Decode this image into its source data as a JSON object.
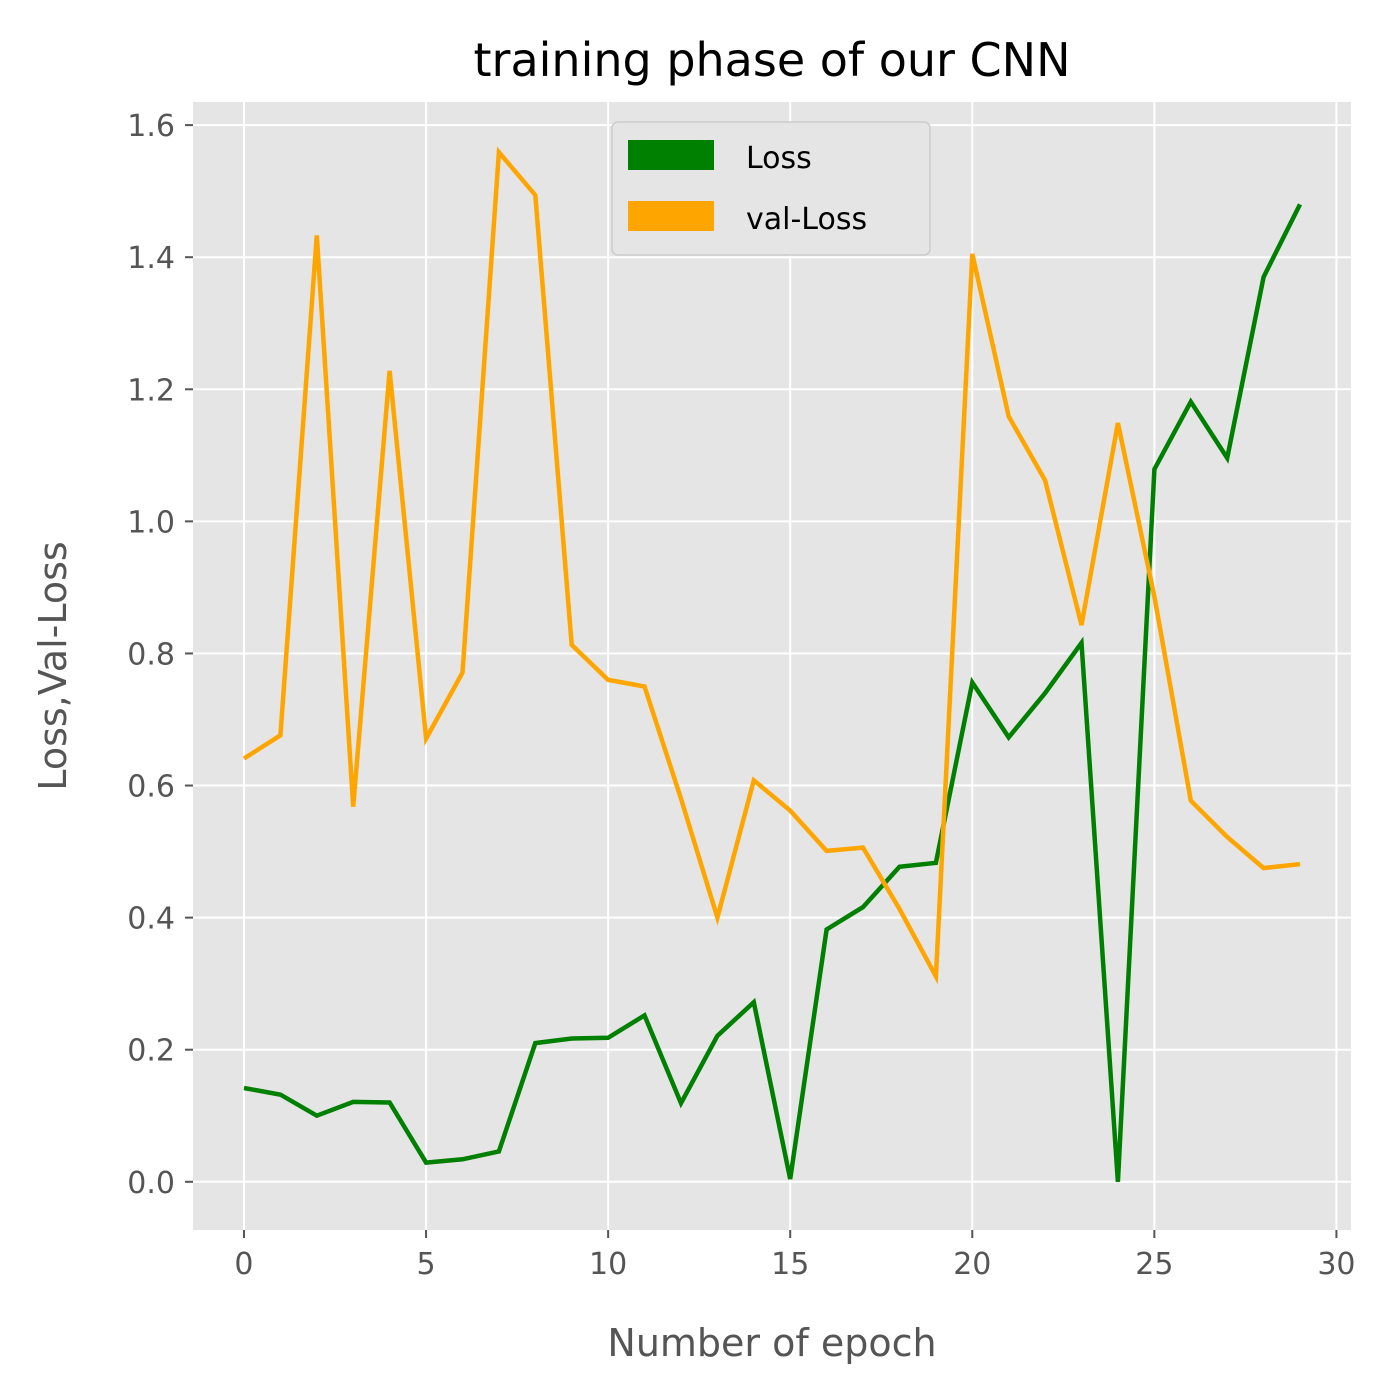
{
  "chart_data": {
    "type": "line",
    "title": "training phase of our CNN",
    "xlabel": "Number of epoch",
    "ylabel": "Loss,Val-Loss",
    "xlim": [
      -1.4,
      30.4
    ],
    "ylim": [
      -0.073,
      1.635
    ],
    "xticks": [
      0,
      5,
      10,
      15,
      20,
      25,
      30
    ],
    "yticks": [
      0.0,
      0.2,
      0.4,
      0.6,
      0.8,
      1.0,
      1.2,
      1.4,
      1.6
    ],
    "xtick_labels": [
      "0",
      "5",
      "10",
      "15",
      "20",
      "25",
      "30"
    ],
    "ytick_labels": [
      "0.0",
      "0.2",
      "0.4",
      "0.6",
      "0.8",
      "1.0",
      "1.2",
      "1.4",
      "1.6"
    ],
    "grid": true,
    "legend_position": "top-center",
    "x": [
      0,
      1,
      2,
      3,
      4,
      5,
      6,
      7,
      8,
      9,
      10,
      11,
      12,
      13,
      14,
      15,
      16,
      17,
      18,
      19,
      20,
      21,
      22,
      23,
      24,
      25,
      26,
      27,
      28,
      29
    ],
    "series": [
      {
        "name": "Loss",
        "color": "#008000",
        "values": [
          0.142,
          0.132,
          0.1,
          0.121,
          0.12,
          0.029,
          0.034,
          0.046,
          0.21,
          0.217,
          0.218,
          0.252,
          0.119,
          0.221,
          0.272,
          0.004,
          0.382,
          0.416,
          0.477,
          0.483,
          0.756,
          0.673,
          0.74,
          0.816,
          0.0,
          1.079,
          1.181,
          1.096,
          1.37,
          1.48
        ]
      },
      {
        "name": "val-Loss",
        "color": "#FFA500",
        "values": [
          0.641,
          0.676,
          1.433,
          0.568,
          1.228,
          0.671,
          0.771,
          1.559,
          1.494,
          0.813,
          0.76,
          0.75,
          0.58,
          0.4,
          0.608,
          0.562,
          0.501,
          0.506,
          0.413,
          0.311,
          1.405,
          1.159,
          1.062,
          0.843,
          1.149,
          0.886,
          0.577,
          0.522,
          0.475,
          0.481
        ]
      }
    ]
  }
}
